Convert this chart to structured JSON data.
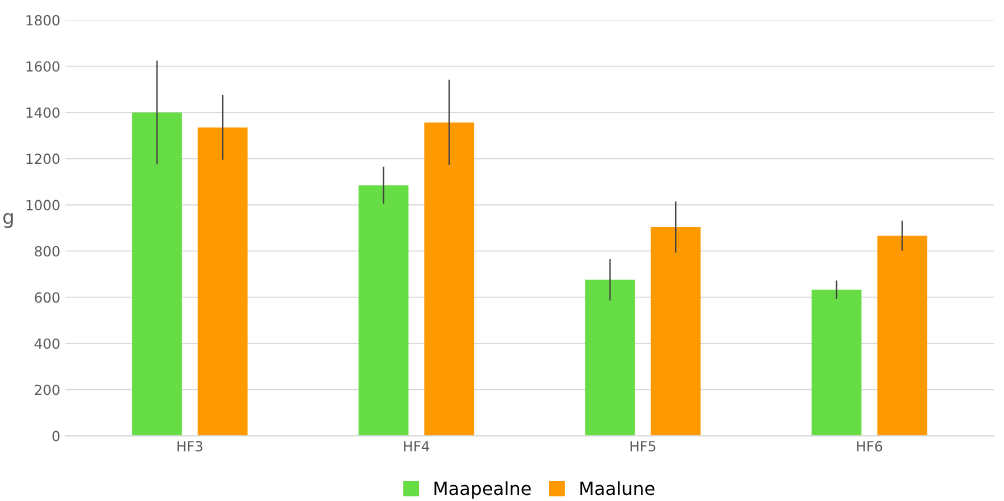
{
  "chart_data": {
    "type": "bar",
    "ylabel": "g",
    "categories": [
      "HF3",
      "HF4",
      "HF5",
      "HF6"
    ],
    "series": [
      {
        "name": "Maapealne",
        "color": "#66dd44",
        "values": [
          1400,
          1085,
          676,
          633
        ],
        "errors": [
          224,
          80,
          90,
          40
        ]
      },
      {
        "name": "Maalune",
        "color": "#ff9900",
        "values": [
          1335,
          1357,
          904,
          866
        ],
        "errors": [
          140,
          185,
          110,
          65
        ]
      }
    ],
    "ylim": [
      0,
      1800
    ],
    "yticks": [
      0,
      200,
      400,
      600,
      800,
      1000,
      1200,
      1400,
      1600,
      1800
    ],
    "grid": "y",
    "legend": "bottom"
  }
}
